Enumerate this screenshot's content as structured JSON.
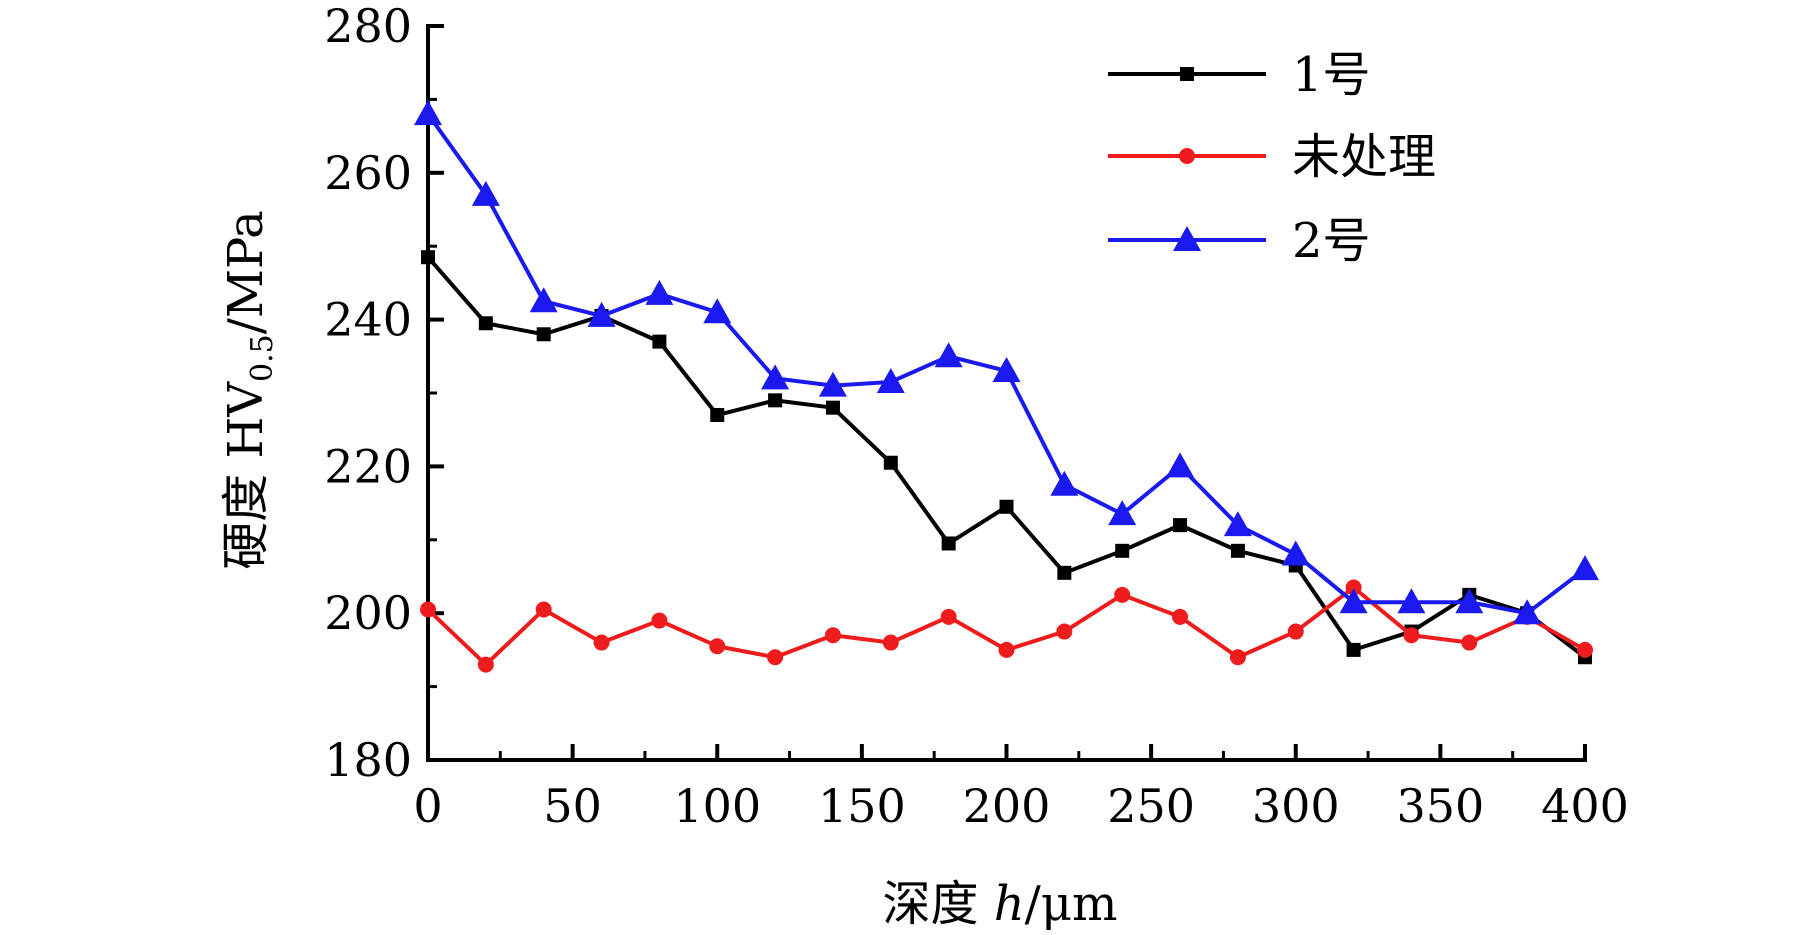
{
  "chart_data": {
    "type": "line",
    "xlabel": {
      "prefix": "深度 ",
      "var": "h",
      "suffix": "/μm"
    },
    "ylabel": {
      "prefix": "硬度 HV",
      "sub": "0.5",
      "suffix": "/MPa"
    },
    "xlim": [
      0,
      400
    ],
    "ylim": [
      180,
      280
    ],
    "xticks": [
      0,
      50,
      100,
      150,
      200,
      250,
      300,
      350,
      400
    ],
    "yticks": [
      180,
      200,
      220,
      240,
      260,
      280
    ],
    "grid": false,
    "legend_position": "top-right",
    "x": [
      0,
      20,
      40,
      60,
      80,
      100,
      120,
      140,
      160,
      180,
      200,
      220,
      240,
      260,
      280,
      300,
      320,
      340,
      360,
      380,
      400
    ],
    "series": [
      {
        "name": "1号",
        "color": "#000000",
        "marker": "square",
        "values": [
          248.5,
          239.5,
          238,
          240.5,
          237,
          227,
          229,
          228,
          220.5,
          209.5,
          214.5,
          205.5,
          208.5,
          212,
          208.5,
          206.5,
          195,
          197.5,
          202.5,
          200,
          194
        ]
      },
      {
        "name": "未处理",
        "color": "#ee1c1c",
        "marker": "circle",
        "values": [
          200.5,
          193,
          200.5,
          196,
          199,
          195.5,
          194,
          197,
          196,
          199.5,
          195,
          197.5,
          202.5,
          199.5,
          194,
          197.5,
          203.5,
          197,
          196,
          199.5,
          195
        ]
      },
      {
        "name": "2号",
        "color": "#1a1af0",
        "marker": "triangle",
        "values": [
          268,
          257,
          242.5,
          240.5,
          243.5,
          241,
          232,
          231,
          231.5,
          235,
          233,
          217.5,
          213.5,
          220,
          212,
          208,
          201.5,
          201.5,
          201.5,
          200,
          206
        ]
      }
    ]
  }
}
